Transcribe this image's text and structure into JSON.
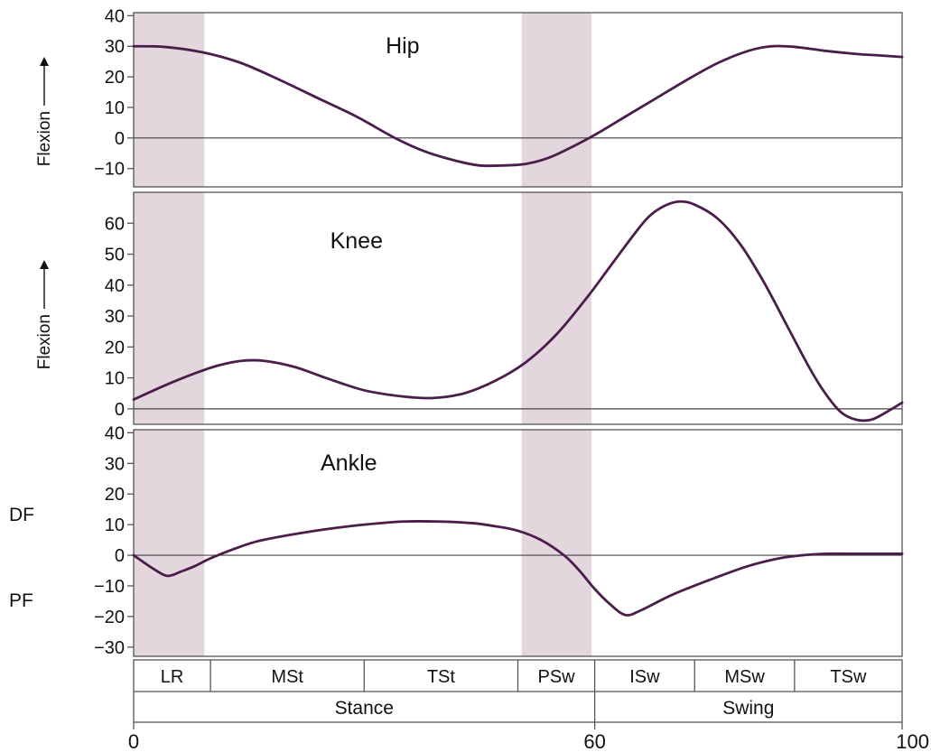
{
  "colors": {
    "curve": "#4a1d4a",
    "shade": "#e3d6dd",
    "frame": "#555555",
    "text": "#111111",
    "zero_line": "#444444"
  },
  "chart_data": [
    {
      "type": "line",
      "title": "Hip",
      "ylabel": "Flexion",
      "xlim": [
        0,
        100
      ],
      "ylim": [
        -16,
        41
      ],
      "yticks": [
        40,
        30,
        20,
        10,
        0,
        -10
      ],
      "shaded_x_ranges": [
        [
          0,
          9.2
        ],
        [
          50.5,
          59.6
        ]
      ],
      "series": [
        {
          "x": [
            0,
            4,
            9,
            14,
            19,
            24,
            29,
            34,
            38,
            42,
            45,
            48,
            51,
            54,
            57,
            60,
            64,
            68,
            72,
            76,
            80,
            83,
            86,
            90,
            94,
            97,
            100
          ],
          "y": [
            30,
            29.8,
            28,
            24.5,
            19,
            13,
            7,
            0,
            -4.5,
            -7.5,
            -9,
            -9,
            -8.5,
            -6.5,
            -3,
            1,
            7,
            13,
            19,
            24.5,
            28.5,
            30,
            29.8,
            28.5,
            27.5,
            27,
            26.5
          ]
        }
      ]
    },
    {
      "type": "line",
      "title": "Knee",
      "ylabel": "Flexion",
      "xlim": [
        0,
        100
      ],
      "ylim": [
        -5,
        70
      ],
      "yticks": [
        60,
        50,
        40,
        30,
        20,
        10,
        0
      ],
      "shaded_x_ranges": [
        [
          0,
          9.2
        ],
        [
          50.5,
          59.6
        ]
      ],
      "series": [
        {
          "x": [
            0,
            4,
            8,
            11,
            14,
            17,
            21,
            25,
            30,
            35,
            39,
            43,
            47,
            51,
            55,
            59,
            62,
            65,
            67,
            69,
            71,
            73,
            76,
            79,
            82,
            85,
            88,
            90,
            92,
            94,
            96,
            98,
            100
          ],
          "y": [
            3,
            7.5,
            11.5,
            14,
            15.5,
            15.5,
            13.5,
            10,
            6,
            4,
            3.5,
            5,
            9,
            15,
            24,
            36,
            46,
            56,
            62,
            65.5,
            67,
            66,
            61.5,
            53,
            41,
            27,
            13,
            5,
            -1,
            -3.5,
            -3.5,
            -1,
            2
          ]
        }
      ]
    },
    {
      "type": "line",
      "title": "Ankle",
      "ylabel": "",
      "xlim": [
        0,
        100
      ],
      "ylim": [
        -33,
        41
      ],
      "yticks": [
        40,
        30,
        20,
        10,
        0,
        -10,
        -20,
        -30
      ],
      "side_labels": [
        "DF",
        "PF"
      ],
      "shaded_x_ranges": [
        [
          0,
          9.2
        ],
        [
          50.5,
          59.6
        ]
      ],
      "series": [
        {
          "x": [
            0,
            2,
            4,
            5,
            6,
            8,
            10,
            13,
            16,
            20,
            25,
            30,
            35,
            40,
            44,
            47,
            50,
            53,
            56,
            58,
            60,
            62,
            64,
            66,
            70,
            75,
            80,
            84,
            87,
            90,
            93,
            96,
            100
          ],
          "y": [
            0,
            -3.5,
            -6.5,
            -6.5,
            -5.5,
            -3.5,
            -1,
            2,
            4.5,
            6.5,
            8.5,
            10,
            11,
            11,
            10.5,
            9.5,
            8,
            5,
            0,
            -5,
            -11,
            -16,
            -19.5,
            -18,
            -13,
            -8,
            -3.5,
            -1,
            0,
            0.5,
            0.5,
            0.5,
            0.5
          ]
        }
      ]
    }
  ],
  "phases": {
    "boundaries": [
      0,
      10,
      30,
      50,
      60,
      73,
      86,
      100
    ],
    "labels": [
      "LR",
      "MSt",
      "TSt",
      "PSw",
      "ISw",
      "MSw",
      "TSw"
    ],
    "groups": [
      {
        "label": "Stance",
        "start": 0,
        "end": 60
      },
      {
        "label": "Swing",
        "start": 60,
        "end": 100
      }
    ]
  },
  "x_axis": {
    "ticks": [
      0,
      60,
      100
    ]
  }
}
